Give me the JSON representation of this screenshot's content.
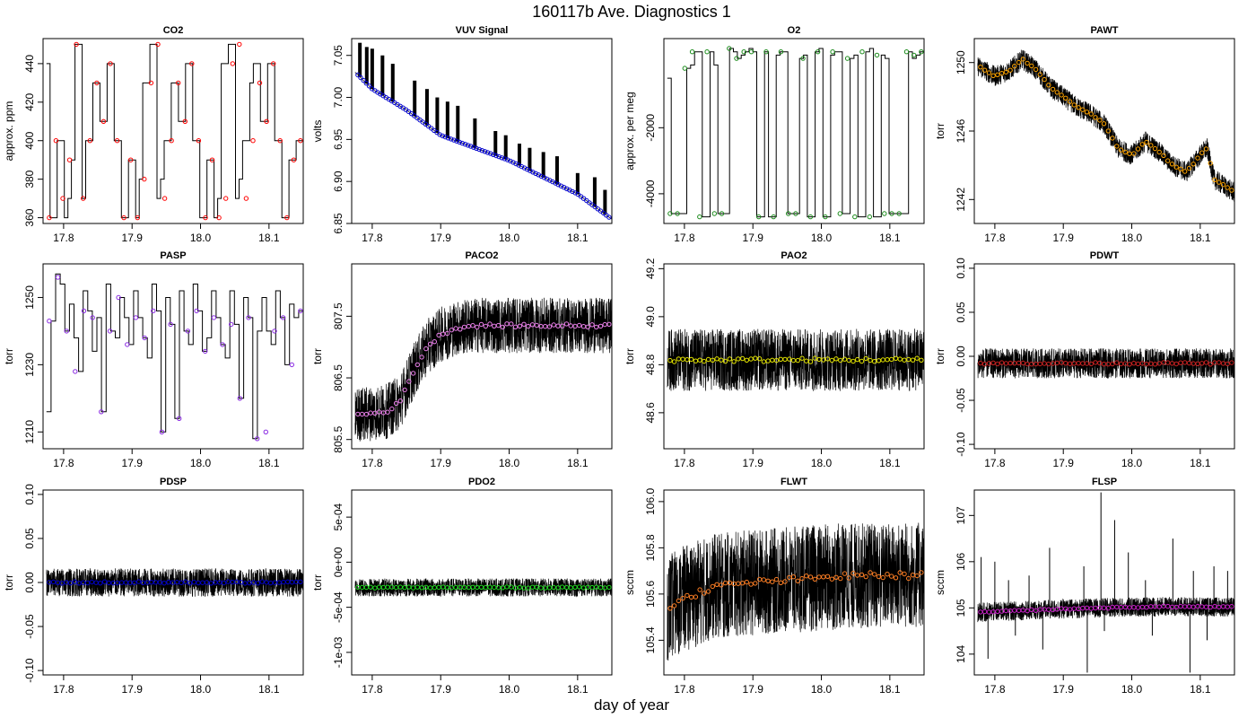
{
  "figure": {
    "title": "160117b   Ave. Diagnostics 1",
    "xlabel": "day of year"
  },
  "chart_data": [
    {
      "type": "line",
      "title": "CO2",
      "ylabel": "approx. ppm",
      "xlim": [
        17.77,
        18.15
      ],
      "ylim": [
        357,
        453
      ],
      "xticks": [
        17.8,
        17.9,
        18.0,
        18.1
      ],
      "xtick_labels": [
        "17.8",
        "17.9",
        "18.0",
        "18.1"
      ],
      "yticks": [
        360,
        380,
        400,
        420,
        440
      ],
      "ytick_labels": [
        "360",
        "380",
        "400",
        "420",
        "440"
      ],
      "mean_color": "#ff0000",
      "mean_marker": "circle",
      "raw_pattern": "step",
      "raw_shape": "sawtooth_cycle",
      "raw_series": [
        440,
        360,
        360,
        400,
        400,
        360,
        370,
        390,
        450,
        450,
        370,
        400,
        400,
        430,
        430,
        410,
        410,
        440,
        440,
        400,
        400,
        360,
        360,
        390,
        390,
        360,
        380,
        430,
        430,
        450,
        450,
        370,
        380,
        400,
        400,
        430,
        430,
        410,
        410,
        440,
        440,
        400,
        400,
        360,
        360,
        390,
        390,
        360,
        370,
        440,
        440,
        450,
        450,
        370,
        380,
        400,
        400,
        430,
        440,
        440,
        410,
        410,
        440,
        440,
        400,
        400,
        360,
        360,
        390,
        390,
        400,
        400
      ],
      "mean_series": [
        360,
        400,
        370,
        390,
        450,
        370,
        400,
        430,
        410,
        440,
        400,
        360,
        390,
        360,
        380,
        430,
        450,
        370,
        400,
        430,
        410,
        440,
        400,
        360,
        390,
        360,
        370,
        440,
        450,
        370,
        400,
        430,
        410,
        440,
        400,
        360,
        390,
        400
      ]
    },
    {
      "type": "line",
      "title": "VUV Signal",
      "ylabel": "volts",
      "xlim": [
        17.77,
        18.15
      ],
      "ylim": [
        6.85,
        7.07
      ],
      "xticks": [
        17.8,
        17.9,
        18.0,
        18.1
      ],
      "xtick_labels": [
        "17.8",
        "17.9",
        "18.0",
        "18.1"
      ],
      "yticks": [
        6.85,
        6.9,
        6.95,
        7.0,
        7.05
      ],
      "ytick_labels": [
        "6.85",
        "6.90",
        "6.95",
        "7.00",
        "7.05"
      ],
      "mean_color": "#0000cc",
      "mean_marker": "circle",
      "trend": [
        [
          17.775,
          7.03
        ],
        [
          17.8,
          7.01
        ],
        [
          17.85,
          6.985
        ],
        [
          17.9,
          6.955
        ],
        [
          17.95,
          6.94
        ],
        [
          18.0,
          6.925
        ],
        [
          18.05,
          6.905
        ],
        [
          18.1,
          6.885
        ],
        [
          18.15,
          6.855
        ]
      ],
      "spikes": [
        [
          17.782,
          7.065
        ],
        [
          17.792,
          7.06
        ],
        [
          17.8,
          7.058
        ],
        [
          17.815,
          7.05
        ],
        [
          17.83,
          7.04
        ],
        [
          17.862,
          7.02
        ],
        [
          17.88,
          7.01
        ],
        [
          17.895,
          7.0
        ],
        [
          17.91,
          6.995
        ],
        [
          17.925,
          6.99
        ],
        [
          17.95,
          6.975
        ],
        [
          17.98,
          6.96
        ],
        [
          17.995,
          6.955
        ],
        [
          18.015,
          6.945
        ],
        [
          18.03,
          6.94
        ],
        [
          18.05,
          6.935
        ],
        [
          18.07,
          6.93
        ],
        [
          18.1,
          6.91
        ],
        [
          18.125,
          6.905
        ],
        [
          18.14,
          6.89
        ]
      ]
    },
    {
      "type": "line",
      "title": "O2",
      "ylabel": "approx. per meg",
      "xlim": [
        17.77,
        18.15
      ],
      "ylim": [
        -4900,
        700
      ],
      "xticks": [
        17.8,
        17.9,
        18.0,
        18.1
      ],
      "xtick_labels": [
        "17.8",
        "17.9",
        "18.0",
        "18.1"
      ],
      "yticks": [
        -4000,
        -2000
      ],
      "ytick_labels": [
        "-4000",
        "-2000"
      ],
      "mean_color": "#1a8a1a",
      "mean_marker": "circle",
      "raw_pattern": "step",
      "raw_shape": "high_low_blocks",
      "raw_series": [
        -500,
        -4600,
        -4600,
        -4600,
        -4600,
        -200,
        -100,
        300,
        300,
        -4700,
        -4700,
        300,
        -100,
        -4600,
        -4600,
        -4600,
        400,
        300,
        100,
        200,
        300,
        400,
        300,
        -4700,
        -4700,
        300,
        -4700,
        -4700,
        200,
        300,
        300,
        -4600,
        -4600,
        -4600,
        100,
        200,
        -4700,
        -4700,
        300,
        400,
        -4700,
        -4700,
        200,
        300,
        300,
        -4600,
        -4600,
        100,
        200,
        -4700,
        -4700,
        300,
        400,
        -4700,
        -4700,
        200,
        100,
        -4600,
        -4600,
        -4600,
        -4600,
        -4600,
        300,
        100,
        200,
        300
      ],
      "mean_series": [
        -4600,
        -4600,
        -200,
        300,
        -4700,
        300,
        -4600,
        -4600,
        400,
        100,
        300,
        300,
        -4700,
        300,
        -4700,
        300,
        -4600,
        -4600,
        100,
        -4700,
        300,
        -4700,
        300,
        -4600,
        100,
        -4700,
        300,
        -4700,
        200,
        -4600,
        -4600,
        -4600,
        300,
        200,
        300
      ]
    },
    {
      "type": "line",
      "title": "PAWT",
      "ylabel": "torr",
      "xlim": [
        17.77,
        18.15
      ],
      "ylim": [
        1240.6,
        1251.4
      ],
      "xticks": [
        17.8,
        17.9,
        18.0,
        18.1
      ],
      "xtick_labels": [
        "17.8",
        "17.9",
        "18.0",
        "18.1"
      ],
      "yticks": [
        1242,
        1246,
        1250
      ],
      "ytick_labels": [
        "1242",
        "1246",
        "1250"
      ],
      "mean_color": "#ffa500",
      "mean_marker": "circle",
      "trend": [
        [
          17.775,
          1249.8
        ],
        [
          17.8,
          1249.2
        ],
        [
          17.82,
          1249.5
        ],
        [
          17.84,
          1250.2
        ],
        [
          17.86,
          1249.6
        ],
        [
          17.88,
          1248.6
        ],
        [
          17.9,
          1248.0
        ],
        [
          17.92,
          1247.4
        ],
        [
          17.94,
          1247.0
        ],
        [
          17.96,
          1246.4
        ],
        [
          17.98,
          1245.0
        ],
        [
          18.0,
          1244.6
        ],
        [
          18.02,
          1245.4
        ],
        [
          18.04,
          1244.8
        ],
        [
          18.06,
          1244.0
        ],
        [
          18.08,
          1243.6
        ],
        [
          18.1,
          1244.6
        ],
        [
          18.11,
          1245.0
        ],
        [
          18.12,
          1243.2
        ],
        [
          18.15,
          1242.4
        ]
      ],
      "noise": 1.2
    },
    {
      "type": "line",
      "title": "PASP",
      "ylabel": "torr",
      "xlim": [
        17.77,
        18.15
      ],
      "ylim": [
        1205,
        1260
      ],
      "xticks": [
        17.8,
        17.9,
        18.0,
        18.1
      ],
      "xtick_labels": [
        "17.8",
        "17.9",
        "18.0",
        "18.1"
      ],
      "yticks": [
        1210,
        1230,
        1250
      ],
      "ytick_labels": [
        "1210",
        "1230",
        "1250"
      ],
      "mean_color": "#8a2be2",
      "mean_marker": "circle",
      "raw_pattern": "step",
      "raw_shape": "periodic_dips",
      "raw_series": [
        1216,
        1243,
        1257,
        1254,
        1240,
        1248,
        1238,
        1228,
        1252,
        1246,
        1234,
        1244,
        1216,
        1254,
        1240,
        1238,
        1250,
        1244,
        1236,
        1252,
        1244,
        1238,
        1232,
        1254,
        1246,
        1210,
        1250,
        1242,
        1214,
        1252,
        1240,
        1236,
        1254,
        1246,
        1234,
        1238,
        1252,
        1244,
        1236,
        1232,
        1252,
        1242,
        1220,
        1250,
        1244,
        1208,
        1240,
        1250,
        1240,
        1236,
        1252,
        1244,
        1230,
        1248,
        1244,
        1246
      ],
      "mean_series": [
        1243,
        1256,
        1240,
        1228,
        1246,
        1244,
        1216,
        1240,
        1250,
        1236,
        1244,
        1238,
        1246,
        1210,
        1242,
        1214,
        1240,
        1246,
        1234,
        1244,
        1236,
        1242,
        1220,
        1244,
        1208,
        1210,
        1240,
        1244,
        1230,
        1246
      ]
    },
    {
      "type": "line",
      "title": "PACO2",
      "ylabel": "torr",
      "xlim": [
        17.77,
        18.15
      ],
      "ylim": [
        805.35,
        808.35
      ],
      "xticks": [
        17.8,
        17.9,
        18.0,
        18.1
      ],
      "xtick_labels": [
        "17.8",
        "17.9",
        "18.0",
        "18.1"
      ],
      "yticks": [
        805.5,
        806.5,
        807.5
      ],
      "ytick_labels": [
        "805.5",
        "806.5",
        "807.5"
      ],
      "mean_color": "#ee82ee",
      "mean_marker": "circle",
      "trend": [
        [
          17.775,
          805.9
        ],
        [
          17.82,
          805.95
        ],
        [
          17.84,
          806.1
        ],
        [
          17.86,
          806.6
        ],
        [
          17.88,
          807.0
        ],
        [
          17.9,
          807.2
        ],
        [
          17.92,
          807.3
        ],
        [
          17.95,
          807.35
        ],
        [
          18.0,
          807.35
        ],
        [
          18.05,
          807.35
        ],
        [
          18.1,
          807.35
        ],
        [
          18.15,
          807.35
        ]
      ],
      "noise": 0.9
    },
    {
      "type": "line",
      "title": "PAO2",
      "ylabel": "torr",
      "xlim": [
        17.77,
        18.15
      ],
      "ylim": [
        48.45,
        49.22
      ],
      "xticks": [
        17.8,
        17.9,
        18.0,
        18.1
      ],
      "xtick_labels": [
        "17.8",
        "17.9",
        "18.0",
        "18.1"
      ],
      "yticks": [
        48.6,
        48.8,
        49.0,
        49.2
      ],
      "ytick_labels": [
        "48.6",
        "48.8",
        "49.0",
        "49.2"
      ],
      "mean_color": "#e6e600",
      "mean_marker": "circle",
      "trend": [
        [
          17.775,
          48.82
        ],
        [
          18.15,
          48.82
        ]
      ],
      "noise": 0.26
    },
    {
      "type": "line",
      "title": "PDWT",
      "ylabel": "torr",
      "xlim": [
        17.77,
        18.15
      ],
      "ylim": [
        -0.105,
        0.105
      ],
      "xticks": [
        17.8,
        17.9,
        18.0,
        18.1
      ],
      "xtick_labels": [
        "17.8",
        "17.9",
        "18.0",
        "18.1"
      ],
      "yticks": [
        -0.1,
        -0.05,
        0.0,
        0.05,
        0.1
      ],
      "ytick_labels": [
        "-0.10",
        "-0.05",
        "0.00",
        "0.05",
        "0.10"
      ],
      "mean_color": "#cc2222",
      "mean_marker": "circle",
      "trend": [
        [
          17.775,
          -0.008
        ],
        [
          18.15,
          -0.008
        ]
      ],
      "noise": 0.034
    },
    {
      "type": "line",
      "title": "PDSP",
      "ylabel": "torr",
      "xlim": [
        17.77,
        18.15
      ],
      "ylim": [
        -0.105,
        0.105
      ],
      "xticks": [
        17.8,
        17.9,
        18.0,
        18.1
      ],
      "xtick_labels": [
        "17.8",
        "17.9",
        "18.0",
        "18.1"
      ],
      "yticks": [
        -0.1,
        -0.05,
        0.0,
        0.05,
        0.1
      ],
      "ytick_labels": [
        "-0.10",
        "-0.05",
        "0.00",
        "0.05",
        "0.10"
      ],
      "mean_color": "#0000cc",
      "mean_marker": "circle",
      "trend": [
        [
          17.775,
          0.0
        ],
        [
          18.15,
          0.0
        ]
      ],
      "noise": 0.032
    },
    {
      "type": "line",
      "title": "PDO2",
      "ylabel": "torr",
      "xlim": [
        17.77,
        18.15
      ],
      "ylim": [
        -0.00125,
        0.0008
      ],
      "xticks": [
        17.8,
        17.9,
        18.0,
        18.1
      ],
      "xtick_labels": [
        "17.8",
        "17.9",
        "18.0",
        "18.1"
      ],
      "yticks": [
        -0.001,
        -0.0005,
        0.0,
        0.0005
      ],
      "ytick_labels": [
        "-1e-03",
        "-5e-04",
        "0e+00",
        "5e-04"
      ],
      "mean_color": "#22dd22",
      "mean_marker": "circle",
      "trend": [
        [
          17.775,
          -0.00028
        ],
        [
          18.15,
          -0.00028
        ]
      ],
      "noise": 0.0002
    },
    {
      "type": "line",
      "title": "FLWT",
      "ylabel": "sccm",
      "xlim": [
        17.77,
        18.15
      ],
      "ylim": [
        105.25,
        106.05
      ],
      "xticks": [
        17.8,
        17.9,
        18.0,
        18.1
      ],
      "xtick_labels": [
        "17.8",
        "17.9",
        "18.0",
        "18.1"
      ],
      "yticks": [
        105.4,
        105.6,
        105.8,
        106.0
      ],
      "ytick_labels": [
        "105.4",
        "105.6",
        "105.8",
        "106.0"
      ],
      "mean_color": "#ff7f24",
      "mean_marker": "circle",
      "trend": [
        [
          17.775,
          105.54
        ],
        [
          17.8,
          105.58
        ],
        [
          17.84,
          105.63
        ],
        [
          17.9,
          105.65
        ],
        [
          17.95,
          105.66
        ],
        [
          18.0,
          105.67
        ],
        [
          18.05,
          105.68
        ],
        [
          18.1,
          105.68
        ],
        [
          18.15,
          105.68
        ]
      ],
      "noise": 0.46
    },
    {
      "type": "line",
      "title": "FLSP",
      "ylabel": "sccm",
      "xlim": [
        17.77,
        18.15
      ],
      "ylim": [
        103.55,
        107.55
      ],
      "xticks": [
        17.8,
        17.9,
        18.0,
        18.1
      ],
      "xtick_labels": [
        "17.8",
        "17.9",
        "18.0",
        "18.1"
      ],
      "yticks": [
        104,
        105,
        106,
        107
      ],
      "ytick_labels": [
        "104",
        "105",
        "106",
        "107"
      ],
      "mean_color": "#cc22cc",
      "mean_marker": "circle",
      "trend": [
        [
          17.775,
          104.9
        ],
        [
          17.85,
          104.95
        ],
        [
          17.95,
          105.0
        ],
        [
          18.05,
          105.03
        ],
        [
          18.15,
          105.02
        ]
      ],
      "noise": 0.42,
      "spikes": [
        [
          17.78,
          106.1
        ],
        [
          17.8,
          106.0
        ],
        [
          17.82,
          105.6
        ],
        [
          17.85,
          105.7
        ],
        [
          17.88,
          106.3
        ],
        [
          17.93,
          105.9
        ],
        [
          17.955,
          107.5
        ],
        [
          17.975,
          106.9
        ],
        [
          17.995,
          106.2
        ],
        [
          18.02,
          105.6
        ],
        [
          18.06,
          106.5
        ],
        [
          18.09,
          105.8
        ],
        [
          18.12,
          105.9
        ],
        [
          18.14,
          105.8
        ]
      ],
      "down_spikes": [
        [
          17.79,
          103.9
        ],
        [
          17.83,
          104.4
        ],
        [
          17.87,
          104.1
        ],
        [
          17.935,
          103.6
        ],
        [
          17.96,
          104.5
        ],
        [
          18.03,
          104.4
        ],
        [
          18.085,
          103.6
        ],
        [
          18.11,
          104.3
        ]
      ]
    }
  ]
}
